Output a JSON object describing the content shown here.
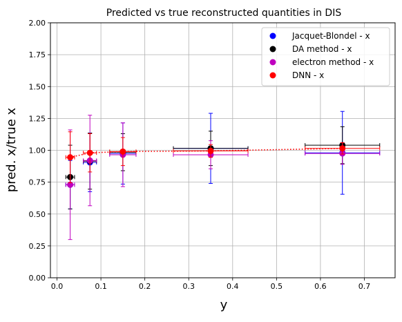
{
  "chart_data": {
    "type": "scatter",
    "title": "Predicted vs true reconstructed quantities in DIS",
    "xlabel": "y",
    "ylabel": "pred. x/true x",
    "xlim": [
      -0.015,
      0.77
    ],
    "ylim": [
      0.0,
      2.0
    ],
    "xticks": [
      "0.0",
      "0.1",
      "0.2",
      "0.3",
      "0.4",
      "0.5",
      "0.6",
      "0.7"
    ],
    "yticks": [
      "0.00",
      "0.25",
      "0.50",
      "0.75",
      "1.00",
      "1.25",
      "1.50",
      "1.75",
      "2.00"
    ],
    "grid": true,
    "legend_position": "top-right",
    "series": [
      {
        "name": "Jacquet-Blondel - x",
        "color": "#0000ff",
        "points": [
          {
            "x": 0.03,
            "y": 0.73,
            "xerr": 0.01,
            "yerr": 0.19
          },
          {
            "x": 0.075,
            "y": 0.905,
            "xerr": 0.015,
            "yerr": 0.23
          },
          {
            "x": 0.15,
            "y": 0.975,
            "xerr": 0.03,
            "yerr": 0.24
          },
          {
            "x": 0.35,
            "y": 1.015,
            "xerr": 0.085,
            "yerr": 0.275
          },
          {
            "x": 0.65,
            "y": 0.98,
            "xerr": 0.085,
            "yerr": 0.325
          }
        ]
      },
      {
        "name": "DA method - x",
        "color": "#000000",
        "points": [
          {
            "x": 0.03,
            "y": 0.79,
            "xerr": 0.01,
            "yerr": 0.25
          },
          {
            "x": 0.075,
            "y": 0.915,
            "xerr": 0.015,
            "yerr": 0.22
          },
          {
            "x": 0.15,
            "y": 0.985,
            "xerr": 0.03,
            "yerr": 0.145
          },
          {
            "x": 0.35,
            "y": 1.015,
            "xerr": 0.085,
            "yerr": 0.135
          },
          {
            "x": 0.65,
            "y": 1.04,
            "xerr": 0.085,
            "yerr": 0.145
          }
        ]
      },
      {
        "name": "electron method - x",
        "color": "#bf00bf",
        "points": [
          {
            "x": 0.03,
            "y": 0.73,
            "xerr": 0.01,
            "yerr": 0.43
          },
          {
            "x": 0.075,
            "y": 0.92,
            "xerr": 0.015,
            "yerr": 0.355
          },
          {
            "x": 0.15,
            "y": 0.965,
            "xerr": 0.03,
            "yerr": 0.25
          },
          {
            "x": 0.35,
            "y": 0.965,
            "xerr": 0.085,
            "yerr": 0.11
          },
          {
            "x": 0.65,
            "y": 0.975,
            "xerr": 0.085,
            "yerr": 0.085
          }
        ]
      },
      {
        "name": "DNN - x",
        "color": "#ff0000",
        "dotted_line": true,
        "points": [
          {
            "x": 0.03,
            "y": 0.945,
            "xerr": 0.01,
            "yerr": 0.2
          },
          {
            "x": 0.075,
            "y": 0.98,
            "xerr": 0.015,
            "yerr": 0.15
          },
          {
            "x": 0.15,
            "y": 0.99,
            "xerr": 0.03,
            "yerr": 0.11
          },
          {
            "x": 0.35,
            "y": 0.995,
            "xerr": 0.085,
            "yerr": 0.05
          },
          {
            "x": 0.65,
            "y": 1.015,
            "xerr": 0.085,
            "yerr": 0.045
          }
        ]
      }
    ]
  }
}
